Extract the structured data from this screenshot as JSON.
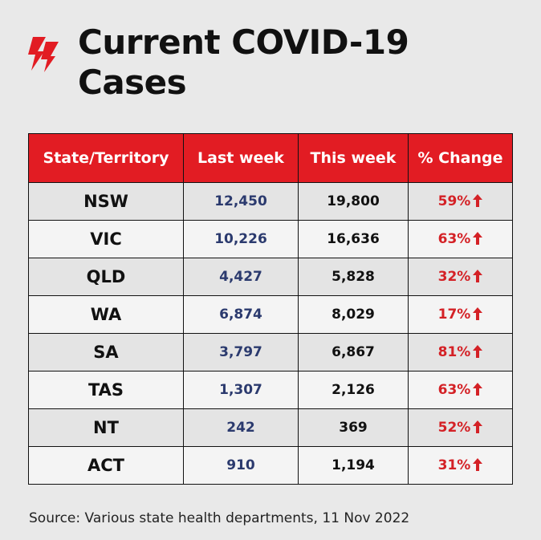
{
  "title_line1": "Current COVID-19",
  "title_line2": "Cases",
  "columns": [
    "State/Territory",
    "Last week",
    "This week",
    "% Change"
  ],
  "rows": [
    {
      "state": "NSW",
      "last_week": "12,450",
      "this_week": "19,800",
      "change": "59%"
    },
    {
      "state": "VIC",
      "last_week": "10,226",
      "this_week": "16,636",
      "change": "63%"
    },
    {
      "state": "QLD",
      "last_week": "4,427",
      "this_week": "5,828",
      "change": "32%"
    },
    {
      "state": "WA",
      "last_week": "6,874",
      "this_week": "8,029",
      "change": "17%"
    },
    {
      "state": "SA",
      "last_week": "3,797",
      "this_week": "6,867",
      "change": "81%"
    },
    {
      "state": "TAS",
      "last_week": "1,307",
      "this_week": "2,126",
      "change": "63%"
    },
    {
      "state": "NT",
      "last_week": "242",
      "this_week": "369",
      "change": "52%"
    },
    {
      "state": "ACT",
      "last_week": "910",
      "this_week": "1,194",
      "change": "31%"
    }
  ],
  "source": "Source: Various state health departments, 11 Nov 2022",
  "icons": {
    "logo": "sbs-news-logo",
    "change_indicator": "arrow-up-icon"
  },
  "colors": {
    "header_bg": "#e21c23",
    "change_text": "#d42126",
    "last_week_text": "#2b3a6e"
  }
}
